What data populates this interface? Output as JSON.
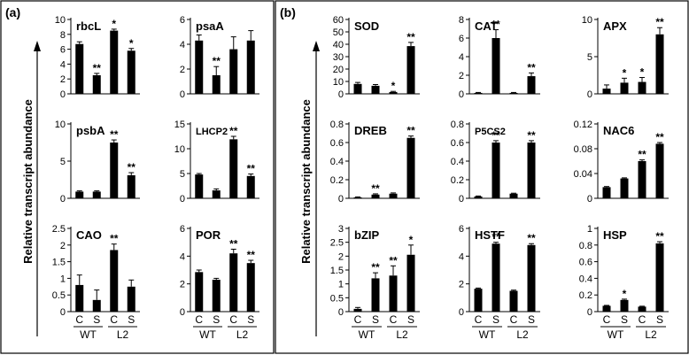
{
  "figure": {
    "panel_a_label": "(a)",
    "panel_b_label": "(b)",
    "y_axis_label": "Relative transcript abundance",
    "colors": {
      "bar": "#000000",
      "frame": "#000000",
      "background": "#ffffff"
    }
  },
  "chart_data": [
    {
      "id": "rbcL",
      "type": "bar",
      "title": "rbcL",
      "categories": [
        "C",
        "S",
        "C",
        "S"
      ],
      "groups": [
        "WT",
        "L2"
      ],
      "values": [
        6.7,
        2.5,
        8.5,
        5.8
      ],
      "errors": [
        0.3,
        0.25,
        0.2,
        0.3
      ],
      "significance": [
        "",
        "**",
        "*",
        "*"
      ],
      "ylim": [
        0,
        10
      ],
      "yticks": [
        0,
        2,
        4,
        6,
        8,
        10
      ],
      "show_xlabels": false
    },
    {
      "id": "psaA",
      "type": "bar",
      "title": "psaA",
      "categories": [
        "C",
        "S",
        "C",
        "S"
      ],
      "groups": [
        "WT",
        "L2"
      ],
      "values": [
        4.3,
        1.5,
        3.6,
        4.3
      ],
      "errors": [
        0.45,
        0.7,
        1.0,
        0.8
      ],
      "significance": [
        "",
        "**",
        "",
        ""
      ],
      "ylim": [
        0,
        6
      ],
      "yticks": [
        0,
        2,
        4,
        6
      ],
      "show_xlabels": false
    },
    {
      "id": "psbA",
      "type": "bar",
      "title": "psbA",
      "categories": [
        "C",
        "S",
        "C",
        "S"
      ],
      "groups": [
        "WT",
        "L2"
      ],
      "values": [
        0.9,
        0.9,
        7.5,
        3.1
      ],
      "errors": [
        0.1,
        0.1,
        0.35,
        0.35
      ],
      "significance": [
        "",
        "",
        "**",
        "**"
      ],
      "ylim": [
        0,
        10
      ],
      "yticks": [
        0,
        5,
        10
      ],
      "show_xlabels": false
    },
    {
      "id": "LHCP2",
      "type": "bar",
      "title": "LHCP2",
      "categories": [
        "C",
        "S",
        "C",
        "S"
      ],
      "groups": [
        "WT",
        "L2"
      ],
      "values": [
        4.8,
        1.6,
        11.9,
        4.5
      ],
      "errors": [
        0.2,
        0.3,
        0.6,
        0.4
      ],
      "significance": [
        "",
        "",
        "**",
        "**"
      ],
      "ylim": [
        0,
        15
      ],
      "yticks": [
        0,
        5,
        10,
        15
      ],
      "show_xlabels": false
    },
    {
      "id": "CAO",
      "type": "bar",
      "title": "CAO",
      "categories": [
        "C",
        "S",
        "C",
        "S"
      ],
      "groups": [
        "WT",
        "L2"
      ],
      "values": [
        0.8,
        0.35,
        1.85,
        0.75
      ],
      "errors": [
        0.3,
        0.3,
        0.18,
        0.2
      ],
      "significance": [
        "",
        "",
        "**",
        ""
      ],
      "ylim": [
        0,
        2.5
      ],
      "yticks": [
        0,
        0.5,
        1,
        1.5,
        2,
        2.5
      ],
      "show_xlabels": true
    },
    {
      "id": "POR",
      "type": "bar",
      "title": "POR",
      "categories": [
        "C",
        "S",
        "C",
        "S"
      ],
      "groups": [
        "WT",
        "L2"
      ],
      "values": [
        2.85,
        2.3,
        4.2,
        3.5
      ],
      "errors": [
        0.15,
        0.1,
        0.3,
        0.2
      ],
      "significance": [
        "",
        "",
        "**",
        "**"
      ],
      "ylim": [
        0,
        6
      ],
      "yticks": [
        0,
        2,
        4,
        6
      ],
      "show_xlabels": true
    },
    {
      "id": "SOD",
      "type": "bar",
      "title": "SOD",
      "categories": [
        "C",
        "S",
        "C",
        "S"
      ],
      "groups": [
        "WT",
        "L2"
      ],
      "values": [
        8,
        6.5,
        1.5,
        38.5
      ],
      "errors": [
        1.2,
        1.0,
        0.5,
        3.0
      ],
      "significance": [
        "",
        "",
        "*",
        "**"
      ],
      "ylim": [
        0,
        60
      ],
      "yticks": [
        0,
        10,
        20,
        30,
        40,
        50,
        60
      ],
      "show_xlabels": false
    },
    {
      "id": "CAT",
      "type": "bar",
      "title": "CAT",
      "categories": [
        "C",
        "S",
        "C",
        "S"
      ],
      "groups": [
        "WT",
        "L2"
      ],
      "values": [
        0.1,
        6.0,
        0.1,
        1.9
      ],
      "errors": [
        0.05,
        0.9,
        0.05,
        0.35
      ],
      "significance": [
        "",
        "**",
        "",
        "**"
      ],
      "ylim": [
        0,
        8
      ],
      "yticks": [
        0,
        2,
        4,
        6,
        8
      ],
      "show_xlabels": false
    },
    {
      "id": "APX",
      "type": "bar",
      "title": "APX",
      "categories": [
        "C",
        "S",
        "C",
        "S"
      ],
      "groups": [
        "WT",
        "L2"
      ],
      "values": [
        0.7,
        1.5,
        1.6,
        8.0
      ],
      "errors": [
        0.5,
        0.6,
        0.6,
        0.9
      ],
      "significance": [
        "",
        "*",
        "*",
        "**"
      ],
      "ylim": [
        0,
        10
      ],
      "yticks": [
        0,
        5,
        10
      ],
      "show_xlabels": false
    },
    {
      "id": "DREB",
      "type": "bar",
      "title": "DREB",
      "categories": [
        "C",
        "S",
        "C",
        "S"
      ],
      "groups": [
        "WT",
        "L2"
      ],
      "values": [
        0.01,
        0.04,
        0.05,
        0.65
      ],
      "errors": [
        0.005,
        0.008,
        0.008,
        0.02
      ],
      "significance": [
        "",
        "**",
        "",
        "**"
      ],
      "ylim": [
        0,
        0.8
      ],
      "yticks": [
        0,
        0.2,
        0.4,
        0.6,
        0.8
      ],
      "show_xlabels": false
    },
    {
      "id": "P5CS2",
      "type": "bar",
      "title": "P5CS2",
      "categories": [
        "C",
        "S",
        "C",
        "S"
      ],
      "groups": [
        "WT",
        "L2"
      ],
      "values": [
        0.02,
        0.6,
        0.05,
        0.6
      ],
      "errors": [
        0.005,
        0.02,
        0.005,
        0.02
      ],
      "significance": [
        "",
        "**",
        "",
        "**"
      ],
      "ylim": [
        0,
        0.8
      ],
      "yticks": [
        0,
        0.2,
        0.4,
        0.6,
        0.8
      ],
      "show_xlabels": false
    },
    {
      "id": "NAC6",
      "type": "bar",
      "title": "NAC6",
      "categories": [
        "C",
        "S",
        "C",
        "S"
      ],
      "groups": [
        "WT",
        "L2"
      ],
      "values": [
        0.018,
        0.032,
        0.06,
        0.088
      ],
      "errors": [
        0.001,
        0.001,
        0.002,
        0.002
      ],
      "significance": [
        "",
        "",
        "**",
        "**"
      ],
      "ylim": [
        0,
        0.12
      ],
      "yticks": [
        0,
        0.04,
        0.08,
        0.12
      ],
      "show_xlabels": false
    },
    {
      "id": "bZIP",
      "type": "bar",
      "title": "bZIP",
      "categories": [
        "C",
        "S",
        "C",
        "S"
      ],
      "groups": [
        "WT",
        "L2"
      ],
      "values": [
        0.1,
        1.2,
        1.3,
        2.05
      ],
      "errors": [
        0.05,
        0.2,
        0.35,
        0.35
      ],
      "significance": [
        "",
        "**",
        "**",
        "*"
      ],
      "ylim": [
        0,
        3
      ],
      "yticks": [
        0,
        0.5,
        1,
        1.5,
        2,
        2.5,
        3
      ],
      "show_xlabels": true
    },
    {
      "id": "HSTF",
      "type": "bar",
      "title": "HSTF",
      "categories": [
        "C",
        "S",
        "C",
        "S"
      ],
      "groups": [
        "WT",
        "L2"
      ],
      "values": [
        1.65,
        4.9,
        1.5,
        4.8
      ],
      "errors": [
        0.05,
        0.1,
        0.05,
        0.1
      ],
      "significance": [
        "",
        "**",
        "",
        "**"
      ],
      "ylim": [
        0,
        6
      ],
      "yticks": [
        0,
        2,
        4,
        6
      ],
      "show_xlabels": true
    },
    {
      "id": "HSP",
      "type": "bar",
      "title": "HSP",
      "categories": [
        "C",
        "S",
        "C",
        "S"
      ],
      "groups": [
        "WT",
        "L2"
      ],
      "values": [
        0.07,
        0.14,
        0.06,
        0.82
      ],
      "errors": [
        0.005,
        0.01,
        0.005,
        0.02
      ],
      "significance": [
        "",
        "*",
        "",
        "**"
      ],
      "ylim": [
        0,
        1
      ],
      "yticks": [
        0,
        0.2,
        0.4,
        0.6,
        0.8,
        1
      ],
      "show_xlabels": true
    }
  ]
}
